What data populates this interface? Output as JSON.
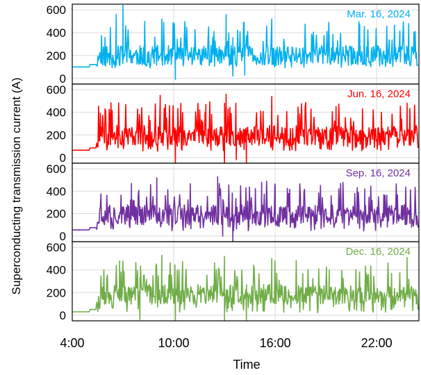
{
  "figure": {
    "ylabel": "Superconducting transmission current (A)",
    "xlabel": "Time"
  },
  "chart_data": [
    {
      "type": "line",
      "panel": 1,
      "label": "Mar. 16, 2024",
      "color": "#00b0f0",
      "xlim": [
        4,
        24.5
      ],
      "ylim": [
        -50,
        650
      ],
      "yticks": [
        0,
        200,
        400,
        600
      ],
      "xticks": [],
      "grid": true,
      "baseline": 100,
      "level": 200,
      "seed": 11,
      "peaks": [
        [
          7.0,
          640
        ],
        [
          6.6,
          560
        ],
        [
          9.3,
          520
        ],
        [
          13.1,
          560
        ],
        [
          15.8,
          520
        ],
        [
          21.0,
          470
        ],
        [
          23.9,
          480
        ]
      ],
      "dips": [
        [
          10.1,
          -10
        ],
        [
          13.5,
          20
        ],
        [
          14.2,
          30
        ]
      ]
    },
    {
      "type": "line",
      "panel": 2,
      "label": "Jun. 16, 2024",
      "color": "#ff0000",
      "xlim": [
        4,
        24.5
      ],
      "ylim": [
        -50,
        650
      ],
      "yticks": [
        0,
        200,
        400,
        600
      ],
      "xticks": [],
      "grid": true,
      "baseline": 65,
      "level": 195,
      "seed": 23,
      "peaks": [
        [
          9.2,
          550
        ],
        [
          13.1,
          560
        ],
        [
          15.8,
          540
        ],
        [
          11.9,
          470
        ],
        [
          19.6,
          450
        ],
        [
          23.8,
          480
        ]
      ],
      "dips": [
        [
          10.1,
          -60
        ],
        [
          13.0,
          -70
        ],
        [
          14.3,
          -70
        ],
        [
          13.7,
          -20
        ]
      ]
    },
    {
      "type": "line",
      "panel": 3,
      "label": "Sep. 16, 2024",
      "color": "#7030a0",
      "xlim": [
        4,
        24.5
      ],
      "ylim": [
        -50,
        650
      ],
      "yticks": [
        0,
        200,
        400,
        600
      ],
      "xticks": [],
      "grid": true,
      "baseline": 55,
      "level": 190,
      "seed": 37,
      "peaks": [
        [
          9.0,
          520
        ],
        [
          12.6,
          530
        ],
        [
          15.2,
          480
        ],
        [
          16.0,
          450
        ],
        [
          7.5,
          470
        ],
        [
          21.3,
          420
        ]
      ],
      "dips": [
        [
          13.5,
          -50
        ],
        [
          12.9,
          0
        ]
      ]
    },
    {
      "type": "line",
      "panel": 4,
      "label": "Dec. 16, 2024",
      "color": "#70ad47",
      "xlim": [
        4,
        24.5
      ],
      "ylim": [
        -50,
        650
      ],
      "yticks": [
        0,
        200,
        400,
        600
      ],
      "xticks": [
        "4:00",
        "10:00",
        "16:00",
        "22:00"
      ],
      "grid": true,
      "baseline": 30,
      "level": 185,
      "seed": 53,
      "peaks": [
        [
          9.3,
          530
        ],
        [
          13.0,
          520
        ],
        [
          15.8,
          500
        ],
        [
          6.8,
          480
        ],
        [
          23.8,
          510
        ],
        [
          19.2,
          400
        ]
      ],
      "dips": [
        [
          10.1,
          -60
        ],
        [
          13.0,
          -70
        ],
        [
          14.3,
          -70
        ],
        [
          8.0,
          -40
        ]
      ]
    }
  ]
}
